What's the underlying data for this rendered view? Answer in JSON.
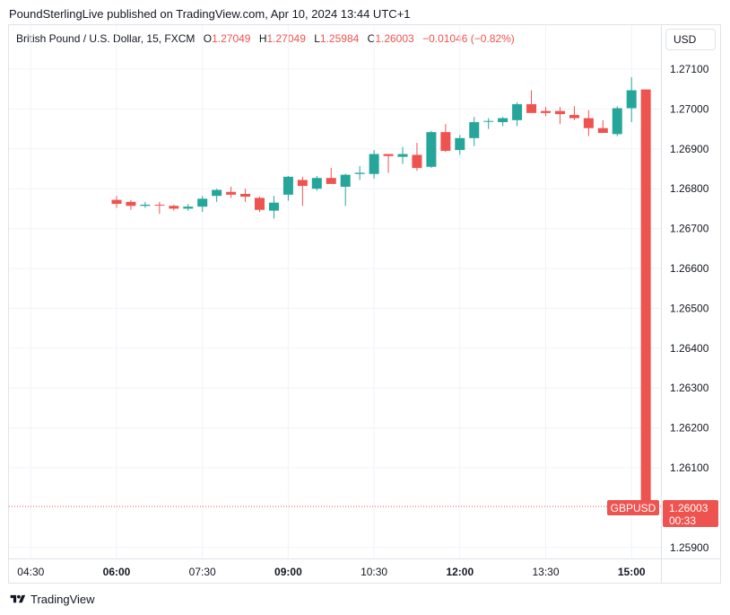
{
  "header": {
    "publisher_line": "PoundSterlingLive published on TradingView.com, Apr 10, 2024 13:44 UTC+1"
  },
  "legend": {
    "symbol_desc": "British Pound / U.S. Dollar, 15, FXCM",
    "o_label": "O",
    "o_value": "1.27049",
    "h_label": "H",
    "h_value": "1.27049",
    "l_label": "L",
    "l_value": "1.25984",
    "c_label": "C",
    "c_value": "1.26003",
    "change": "−0.01046 (−0.82%)"
  },
  "currency_button": "USD",
  "price_tag": {
    "symbol": "GBPUSD",
    "price": "1.26003",
    "countdown": "00:33"
  },
  "footer": {
    "brand": "TradingView"
  },
  "colors": {
    "up": "#26a69a",
    "down": "#ef5350",
    "grid": "#f0f3fa",
    "text": "#131722"
  },
  "chart_data": {
    "type": "candlestick",
    "y_ticks": [
      "1.27100",
      "1.27000",
      "1.26900",
      "1.26800",
      "1.26700",
      "1.26600",
      "1.26500",
      "1.26400",
      "1.26300",
      "1.26200",
      "1.26100",
      "1.25900"
    ],
    "x_ticks": [
      {
        "label": "04:30",
        "bold": false,
        "index": -6
      },
      {
        "label": "06:00",
        "bold": true,
        "index": 0
      },
      {
        "label": "07:30",
        "bold": false,
        "index": 6
      },
      {
        "label": "09:00",
        "bold": true,
        "index": 12
      },
      {
        "label": "10:30",
        "bold": false,
        "index": 18
      },
      {
        "label": "12:00",
        "bold": true,
        "index": 24
      },
      {
        "label": "13:30",
        "bold": false,
        "index": 30
      },
      {
        "label": "15:00",
        "bold": true,
        "index": 36
      }
    ],
    "ylim": [
      1.2587,
      1.2713
    ],
    "last_price": 1.26003,
    "candles": [
      {
        "o": 1.26772,
        "h": 1.26782,
        "l": 1.26752,
        "c": 1.26762
      },
      {
        "o": 1.26767,
        "h": 1.26772,
        "l": 1.26747,
        "c": 1.26757
      },
      {
        "o": 1.26757,
        "h": 1.26767,
        "l": 1.26752,
        "c": 1.2676
      },
      {
        "o": 1.2676,
        "h": 1.26767,
        "l": 1.26737,
        "c": 1.26758
      },
      {
        "o": 1.26757,
        "h": 1.2676,
        "l": 1.26745,
        "c": 1.2675
      },
      {
        "o": 1.2675,
        "h": 1.26762,
        "l": 1.26745,
        "c": 1.26755
      },
      {
        "o": 1.26755,
        "h": 1.26782,
        "l": 1.26742,
        "c": 1.26775
      },
      {
        "o": 1.26782,
        "h": 1.268,
        "l": 1.26767,
        "c": 1.26797
      },
      {
        "o": 1.26792,
        "h": 1.26805,
        "l": 1.26777,
        "c": 1.26785
      },
      {
        "o": 1.26787,
        "h": 1.268,
        "l": 1.26767,
        "c": 1.2678
      },
      {
        "o": 1.26777,
        "h": 1.2678,
        "l": 1.26742,
        "c": 1.26747
      },
      {
        "o": 1.26745,
        "h": 1.26782,
        "l": 1.26725,
        "c": 1.26765
      },
      {
        "o": 1.26785,
        "h": 1.26832,
        "l": 1.2677,
        "c": 1.2683
      },
      {
        "o": 1.26822,
        "h": 1.2683,
        "l": 1.26757,
        "c": 1.26807
      },
      {
        "o": 1.268,
        "h": 1.26832,
        "l": 1.26795,
        "c": 1.26827
      },
      {
        "o": 1.26827,
        "h": 1.26852,
        "l": 1.26817,
        "c": 1.26812
      },
      {
        "o": 1.26805,
        "h": 1.26838,
        "l": 1.26757,
        "c": 1.26835
      },
      {
        "o": 1.26837,
        "h": 1.26857,
        "l": 1.26822,
        "c": 1.2684
      },
      {
        "o": 1.26837,
        "h": 1.26897,
        "l": 1.26825,
        "c": 1.26887
      },
      {
        "o": 1.26887,
        "h": 1.26887,
        "l": 1.2684,
        "c": 1.26882
      },
      {
        "o": 1.2688,
        "h": 1.26905,
        "l": 1.26862,
        "c": 1.26887
      },
      {
        "o": 1.26885,
        "h": 1.26915,
        "l": 1.26845,
        "c": 1.26852
      },
      {
        "o": 1.26855,
        "h": 1.26945,
        "l": 1.26852,
        "c": 1.26942
      },
      {
        "o": 1.26942,
        "h": 1.26962,
        "l": 1.26892,
        "c": 1.26895
      },
      {
        "o": 1.26897,
        "h": 1.26935,
        "l": 1.26885,
        "c": 1.26927
      },
      {
        "o": 1.26927,
        "h": 1.2698,
        "l": 1.26907,
        "c": 1.26967
      },
      {
        "o": 1.2697,
        "h": 1.26977,
        "l": 1.2695,
        "c": 1.2697
      },
      {
        "o": 1.26967,
        "h": 1.2698,
        "l": 1.26957,
        "c": 1.26977
      },
      {
        "o": 1.26972,
        "h": 1.27017,
        "l": 1.26957,
        "c": 1.27012
      },
      {
        "o": 1.27012,
        "h": 1.27047,
        "l": 1.26992,
        "c": 1.2699
      },
      {
        "o": 1.26995,
        "h": 1.27005,
        "l": 1.26982,
        "c": 1.2699
      },
      {
        "o": 1.26995,
        "h": 1.27005,
        "l": 1.26962,
        "c": 1.26987
      },
      {
        "o": 1.26985,
        "h": 1.27007,
        "l": 1.26972,
        "c": 1.26977
      },
      {
        "o": 1.26977,
        "h": 1.26997,
        "l": 1.26932,
        "c": 1.26952
      },
      {
        "o": 1.26952,
        "h": 1.26972,
        "l": 1.26942,
        "c": 1.2694
      },
      {
        "o": 1.26937,
        "h": 1.27007,
        "l": 1.26932,
        "c": 1.27002
      },
      {
        "o": 1.27002,
        "h": 1.2708,
        "l": 1.26967,
        "c": 1.27047
      },
      {
        "o": 1.27049,
        "h": 1.27049,
        "l": 1.25984,
        "c": 1.26003
      }
    ]
  }
}
